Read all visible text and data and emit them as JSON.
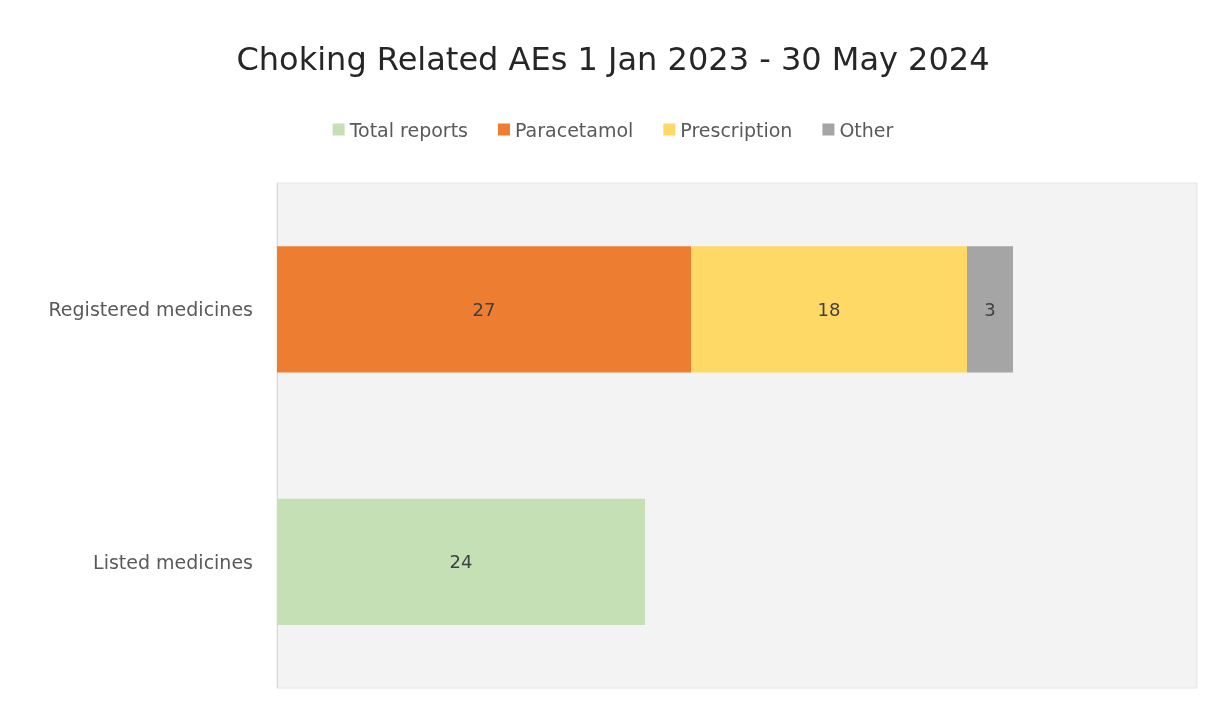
{
  "chart_data": {
    "type": "bar",
    "orientation": "horizontal",
    "stacked": true,
    "title": "Choking Related AEs 1 Jan 2023 - 30 May 2024",
    "categories": [
      "Registered medicines",
      "Listed medicines"
    ],
    "series": [
      {
        "name": "Total reports",
        "color": "#c5e0b4",
        "values": [
          null,
          24
        ]
      },
      {
        "name": "Paracetamol",
        "color": "#ed7d31",
        "values": [
          27,
          null
        ]
      },
      {
        "name": "Prescription",
        "color": "#ffd966",
        "values": [
          18,
          null
        ]
      },
      {
        "name": "Other",
        "color": "#a5a5a5",
        "values": [
          3,
          null
        ]
      }
    ],
    "xlim": [
      0,
      60
    ],
    "tick_labels": "y",
    "data_labels": true,
    "legend": "top",
    "grid": false
  }
}
